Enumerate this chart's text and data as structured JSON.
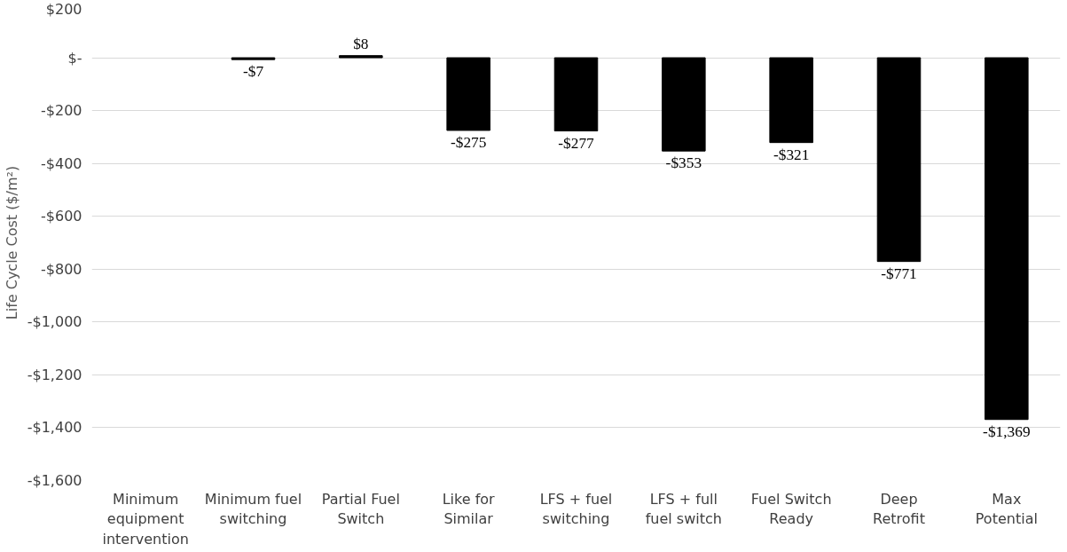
{
  "chart_data": {
    "type": "bar",
    "ylabel": "Life Cycle Cost ($/m²)",
    "categories": [
      "Minimum equipment intervention",
      "Minimum fuel switching",
      "Partial Fuel Switch",
      "Like for Similar",
      "LFS + fuel switching",
      "LFS + full fuel switch",
      "Fuel Switch Ready",
      "Deep Retrofit",
      "Max Potential"
    ],
    "values": [
      null,
      -7,
      8,
      -275,
      -277,
      -353,
      -321,
      -771,
      -1369
    ],
    "value_labels": [
      null,
      "-$7",
      "$8",
      "-$275",
      "-$277",
      "-$353",
      "-$321",
      "-$771",
      "-$1,369"
    ],
    "color": "#000000",
    "ylim": [
      -1600,
      200
    ],
    "yticks": [
      {
        "value": 200,
        "label": "$200"
      },
      {
        "value": 0,
        "label": "$-"
      },
      {
        "value": -200,
        "label": "-$200"
      },
      {
        "value": -400,
        "label": "-$400"
      },
      {
        "value": -600,
        "label": "-$600"
      },
      {
        "value": -800,
        "label": "-$800"
      },
      {
        "value": -1000,
        "label": "-$1,000"
      },
      {
        "value": -1200,
        "label": "-$1,200"
      },
      {
        "value": -1400,
        "label": "-$1,400"
      },
      {
        "value": -1600,
        "label": "-$1,600"
      }
    ],
    "grid": "y"
  }
}
